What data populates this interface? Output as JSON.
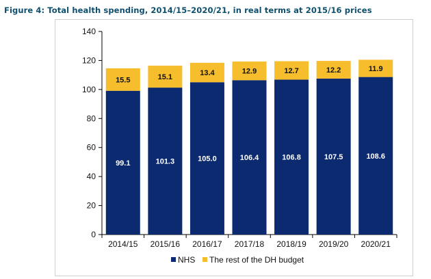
{
  "figure_title": "Figure 4: Total health spending, 2014/15–2020/21, in real terms at 2015/16 prices",
  "colors": {
    "nhs": "#0b2a6f",
    "rest": "#f6bd2c",
    "axis": "#000000",
    "nhs_label": "#ffffff",
    "rest_label": "#111111"
  },
  "chart_data": {
    "type": "bar",
    "stacked": true,
    "title": "Figure 4: Total health spending, 2014/15–2020/21, in real terms at 2015/16 prices",
    "xlabel": "",
    "ylabel": "",
    "categories": [
      "2014/15",
      "2015/16",
      "2016/17",
      "2017/18",
      "2018/19",
      "2019/20",
      "2020/21"
    ],
    "series": [
      {
        "name": "NHS",
        "values": [
          99.1,
          101.3,
          105.0,
          106.4,
          106.8,
          107.5,
          108.6
        ],
        "labels": [
          "99.1",
          "101.3",
          "105.0",
          "106.4",
          "106.8",
          "107.5",
          "108.6"
        ]
      },
      {
        "name": "The rest of the DH budget",
        "values": [
          15.5,
          15.1,
          13.4,
          12.9,
          12.7,
          12.2,
          11.9
        ],
        "labels": [
          "15.5",
          "15.1",
          "13.4",
          "12.9",
          "12.7",
          "12.2",
          "11.9"
        ]
      }
    ],
    "ylim": [
      0,
      140
    ],
    "yticks": [
      "0",
      "20",
      "40",
      "60",
      "80",
      "100",
      "120",
      "140"
    ],
    "grid": false,
    "legend_position": "bottom"
  }
}
